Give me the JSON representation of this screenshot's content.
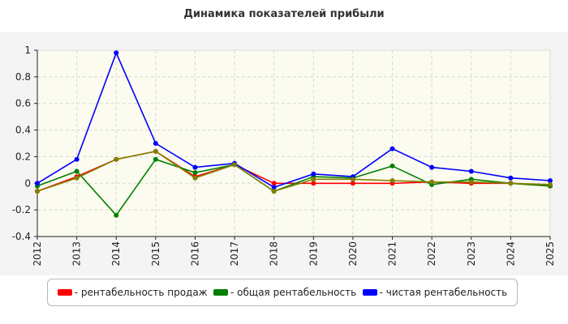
{
  "chart_data": {
    "type": "line",
    "title": "Динамика показателей прибыли",
    "xlabel": "",
    "ylabel": "",
    "categories": [
      "2012",
      "2013",
      "2014",
      "2015",
      "2016",
      "2017",
      "2018",
      "2019",
      "2020",
      "2021",
      "2022",
      "2023",
      "2024",
      "2025"
    ],
    "yticks": [
      "1",
      "0.8",
      "0.6",
      "0.4",
      "0.2",
      "0",
      "-0.2",
      "-0.4"
    ],
    "ylim": [
      -0.4,
      1.0
    ],
    "grid": true,
    "legend_position": "bottom",
    "series": [
      {
        "name": "- рентабельность продаж",
        "color": "#ff0000",
        "values": [
          -0.06,
          0.05,
          0.18,
          0.24,
          0.05,
          0.14,
          0.0,
          0.0,
          0.0,
          0.0,
          0.01,
          0.0,
          0.0,
          -0.02
        ]
      },
      {
        "name": "- общая рентабельность",
        "color": "#008000",
        "values": [
          -0.02,
          0.09,
          -0.24,
          0.18,
          0.08,
          0.14,
          -0.06,
          0.05,
          0.04,
          0.13,
          -0.01,
          0.03,
          0.0,
          -0.02
        ]
      },
      {
        "name": "- чистая рентабельность",
        "color": "#0000ff",
        "values": [
          0.0,
          0.18,
          0.98,
          0.3,
          0.12,
          0.15,
          -0.03,
          0.07,
          0.05,
          0.26,
          0.12,
          0.09,
          0.04,
          0.02
        ]
      }
    ],
    "overlay_series": {
      "color": "#808000",
      "values": [
        -0.06,
        0.04,
        0.18,
        0.24,
        0.04,
        0.14,
        -0.06,
        0.03,
        0.03,
        0.02,
        0.01,
        0.01,
        0.0,
        -0.01
      ]
    }
  }
}
